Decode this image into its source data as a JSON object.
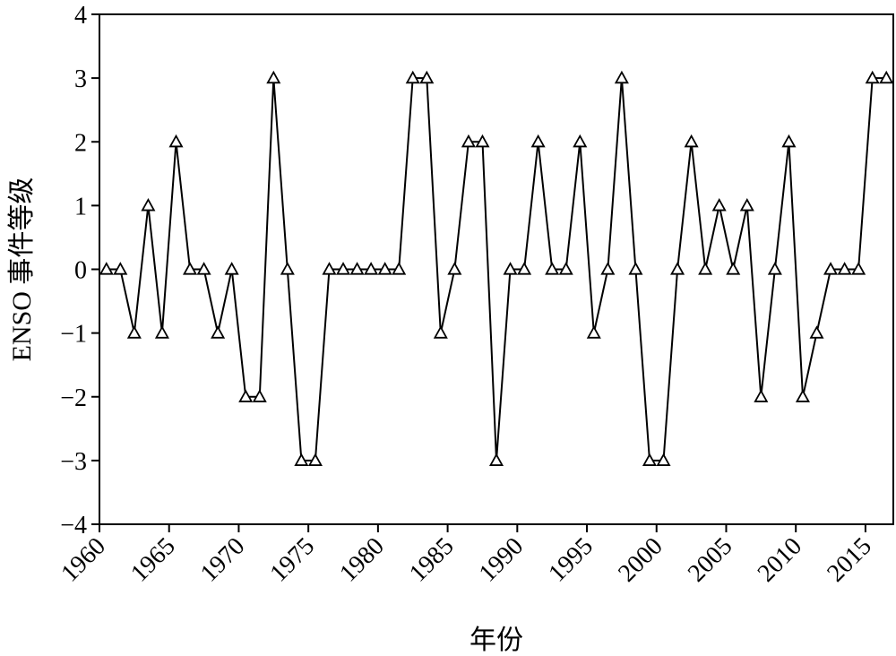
{
  "chart_data": {
    "type": "line",
    "title": "",
    "xlabel": "年份",
    "ylabel": "ENSO 事件等级",
    "xlim": [
      1960,
      2017
    ],
    "ylim": [
      -4,
      4
    ],
    "x_ticks": [
      1960,
      1965,
      1970,
      1975,
      1980,
      1985,
      1990,
      1995,
      2000,
      2005,
      2010,
      2015
    ],
    "x_tick_labels": [
      "1960",
      "1965",
      "1970",
      "1975",
      "1980",
      "1985",
      "1990",
      "1995",
      "2000",
      "2005",
      "2010",
      "2015"
    ],
    "y_ticks": [
      -4,
      -3,
      -2,
      -1,
      0,
      1,
      2,
      3,
      4
    ],
    "y_tick_labels": [
      "−4",
      "−3",
      "−2",
      "−1",
      "0",
      "1",
      "2",
      "3",
      "4"
    ],
    "grid": false,
    "marker": "triangle-open",
    "line_color": "#000000",
    "x": [
      1960.5,
      1961.5,
      1962.5,
      1963.5,
      1964.5,
      1965.5,
      1966.5,
      1967.5,
      1968.5,
      1969.5,
      1970.5,
      1971.5,
      1972.5,
      1973.5,
      1974.5,
      1975.5,
      1976.5,
      1977.5,
      1978.5,
      1979.5,
      1980.5,
      1981.5,
      1982.5,
      1983.5,
      1984.5,
      1985.5,
      1986.5,
      1987.5,
      1988.5,
      1989.5,
      1990.5,
      1991.5,
      1992.5,
      1993.5,
      1994.5,
      1995.5,
      1996.5,
      1997.5,
      1998.5,
      1999.5,
      2000.5,
      2001.5,
      2002.5,
      2003.5,
      2004.5,
      2005.5,
      2006.5,
      2007.5,
      2008.5,
      2009.5,
      2010.5,
      2011.5,
      2012.5,
      2013.5,
      2014.5,
      2015.5,
      2016.5
    ],
    "series": [
      {
        "values": [
          0,
          0,
          -1,
          1,
          -1,
          2,
          0,
          0,
          -1,
          0,
          -2,
          -2,
          3,
          0,
          -3,
          -3,
          0,
          0,
          0,
          0,
          0,
          0,
          3,
          3,
          -1,
          0,
          2,
          2,
          -3,
          0,
          0,
          2,
          0,
          0,
          2,
          -1,
          0,
          3,
          0,
          -3,
          -3,
          0,
          2,
          0,
          1,
          0,
          1,
          -2,
          0,
          2,
          -2,
          -1,
          0,
          0,
          0,
          3,
          3
        ]
      }
    ]
  }
}
